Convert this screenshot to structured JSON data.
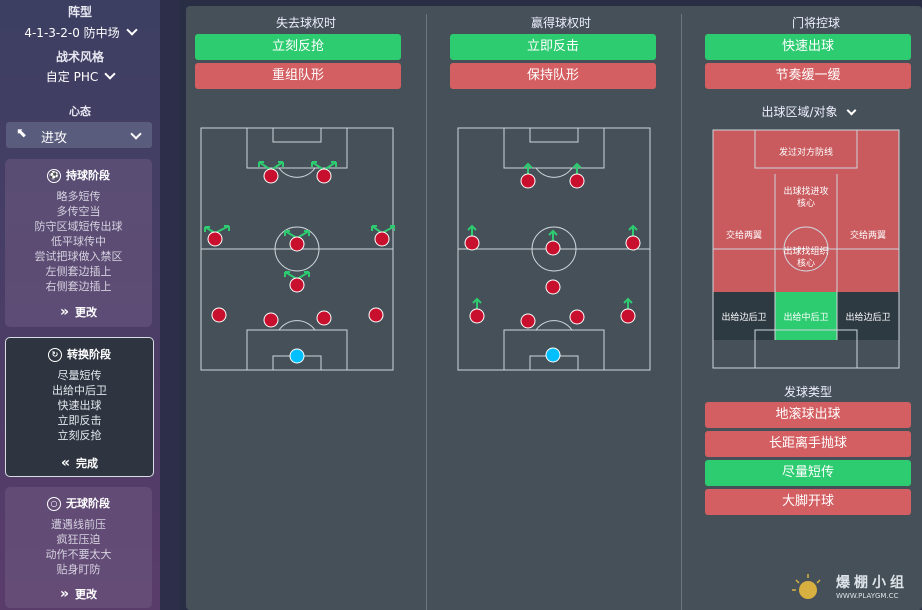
{
  "sidebar": {
    "formation_label": "阵型",
    "formation_value": "4-1-3-2-0 防中场",
    "style_label": "战术风格",
    "style_value": "自定 PHC",
    "mentality_label": "心态",
    "mentality_value": "进攻",
    "phases": [
      {
        "title": "持球阶段",
        "items": [
          "略多短传",
          "多传空当",
          "防守区域短传出球",
          "低平球传中",
          "尝试把球做入禁区",
          "左侧套边插上",
          "右侧套边插上"
        ],
        "button": "更改"
      },
      {
        "title": "转换阶段",
        "items": [
          "尽量短传",
          "出给中后卫",
          "快速出球",
          "立即反击",
          "立刻反抢"
        ],
        "button": "完成"
      },
      {
        "title": "无球阶段",
        "items": [
          "遭遇线前压",
          "疯狂压迫",
          "动作不要太大",
          "贴身盯防"
        ],
        "button": "更改"
      }
    ]
  },
  "transition": {
    "lose_title": "失去球权时",
    "lose_options": [
      {
        "label": "立刻反抢",
        "state": "on"
      },
      {
        "label": "重组队形",
        "state": "off"
      }
    ],
    "win_title": "赢得球权时",
    "win_options": [
      {
        "label": "立即反击",
        "state": "on"
      },
      {
        "label": "保持队形",
        "state": "off"
      }
    ],
    "gk_title": "门将控球",
    "gk_options": [
      {
        "label": "快速出球",
        "state": "on"
      },
      {
        "label": "节奏缓一缓",
        "state": "off"
      }
    ],
    "distribution_label": "出球区域/对象",
    "zones": {
      "over_defence": "发过对方防线",
      "attack_core": "出球找进攻核心",
      "playmaker_core": "出球找组织核心",
      "left_flank": "交给两翼",
      "right_flank": "交给两翼",
      "left_fullback": "出给边后卫",
      "centre_backs": "出给中后卫",
      "right_fullback": "出给边后卫"
    },
    "kick_type_label": "发球类型",
    "kick_options": [
      {
        "label": "地滚球出球",
        "state": "off"
      },
      {
        "label": "长距离手抛球",
        "state": "off"
      },
      {
        "label": "尽量短传",
        "state": "on"
      },
      {
        "label": "大脚开球",
        "state": "off"
      }
    ]
  },
  "watermark": {
    "text": "爆棚小组",
    "url": "WWW.PLAYGM.CC"
  },
  "colors": {
    "on": "#2ecc71",
    "off": "#d45f62",
    "player": "#c8102e",
    "keeper": "#00bfff",
    "arrow": "#2ecc71"
  }
}
